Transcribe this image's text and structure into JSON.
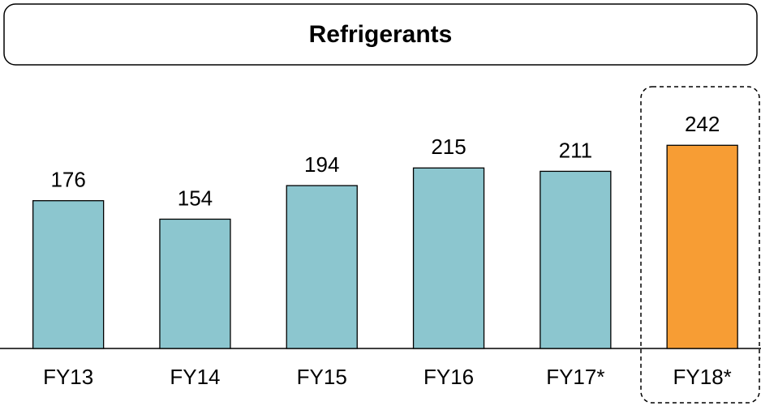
{
  "chart_data": {
    "type": "bar",
    "title": "Refrigerants",
    "categories": [
      "FY13",
      "FY14",
      "FY15",
      "FY16",
      "FY17*",
      "FY18*"
    ],
    "values": [
      176,
      154,
      194,
      215,
      211,
      242
    ],
    "colors": [
      "#8cc6cf",
      "#8cc6cf",
      "#8cc6cf",
      "#8cc6cf",
      "#8cc6cf",
      "#f79d34"
    ],
    "ylim": [
      0,
      250
    ]
  }
}
